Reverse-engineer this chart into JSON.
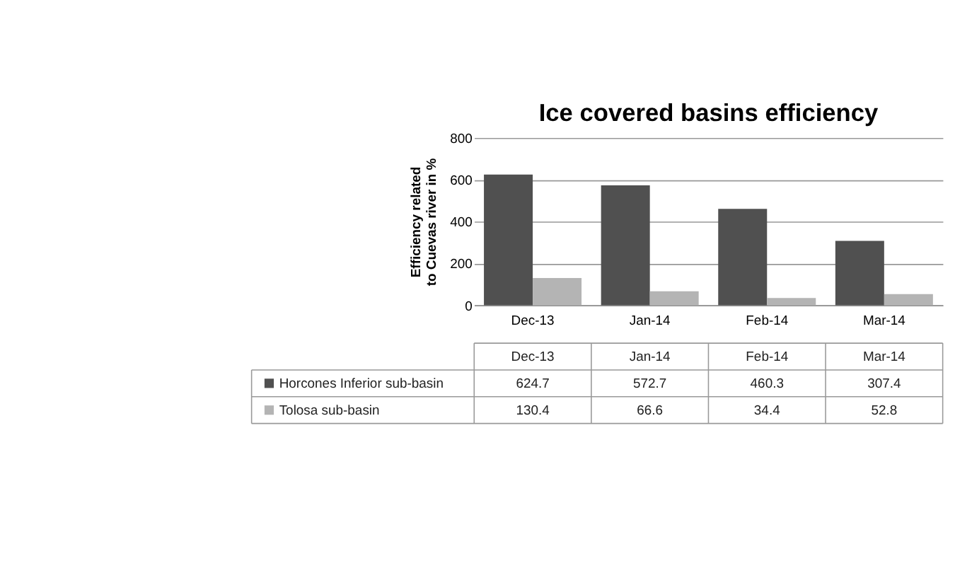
{
  "chart_data": {
    "type": "bar",
    "title": "Ice covered basins efficiency",
    "ylabel": "Efficiency related\nto Cuevas river in %",
    "categories": [
      "Dec-13",
      "Jan-14",
      "Feb-14",
      "Mar-14"
    ],
    "series": [
      {
        "name": "Horcones Inferior sub-basin",
        "color": "#505050",
        "values": [
          624.7,
          572.7,
          460.3,
          307.4
        ]
      },
      {
        "name": "Tolosa sub-basin",
        "color": "#b4b4b4",
        "values": [
          130.4,
          66.6,
          34.4,
          52.8
        ]
      }
    ],
    "ylim": [
      0,
      800
    ],
    "yticks": [
      0,
      200,
      400,
      600,
      800
    ],
    "grid": "y",
    "legend": "bottom",
    "data_labels": true
  }
}
